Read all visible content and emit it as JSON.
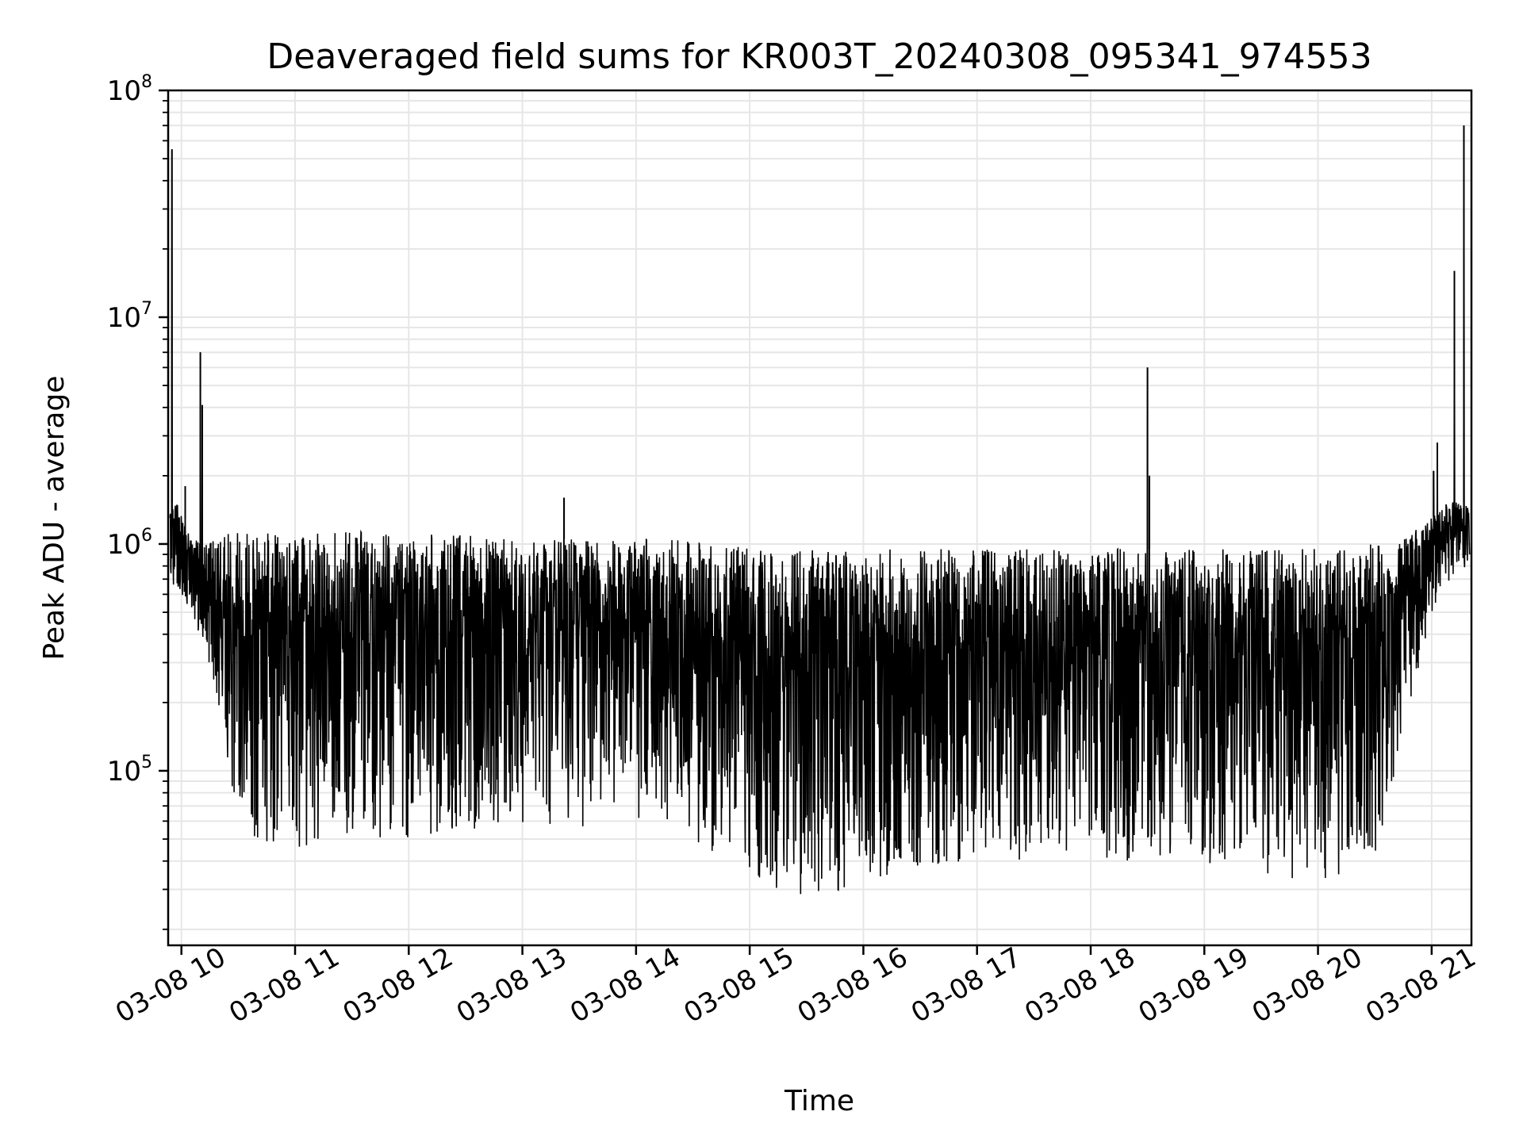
{
  "chart_data": {
    "type": "line",
    "title": "Deaveraged field sums for KR003T_20240308_095341_974553",
    "xlabel": "Time",
    "ylabel": "Peak ADU - average",
    "yscale": "log",
    "xlim": [
      "2024-03-08 09:53",
      "2024-03-08 21:21"
    ],
    "ylim": [
      17000,
      100000000
    ],
    "grid": true,
    "x_ticks": [
      "03-08 10",
      "03-08 11",
      "03-08 12",
      "03-08 13",
      "03-08 14",
      "03-08 15",
      "03-08 16",
      "03-08 17",
      "03-08 18",
      "03-08 19",
      "03-08 20",
      "03-08 21"
    ],
    "y_ticks": [
      {
        "base": "10",
        "exp": "5",
        "value": 100000
      },
      {
        "base": "10",
        "exp": "6",
        "value": 1000000
      },
      {
        "base": "10",
        "exp": "7",
        "value": 10000000
      },
      {
        "base": "10",
        "exp": "8",
        "value": 100000000
      }
    ],
    "series": [
      {
        "color": "#000000",
        "envelope": {
          "x": [
            "2024-03-08 09:54",
            "2024-03-08 09:58",
            "2024-03-08 10:05",
            "2024-03-08 10:12",
            "2024-03-08 10:20",
            "2024-03-08 10:30",
            "2024-03-08 10:40",
            "2024-03-08 11:00",
            "2024-03-08 11:30",
            "2024-03-08 12:00",
            "2024-03-08 12:30",
            "2024-03-08 13:00",
            "2024-03-08 13:30",
            "2024-03-08 14:00",
            "2024-03-08 14:30",
            "2024-03-08 15:00",
            "2024-03-08 15:30",
            "2024-03-08 16:00",
            "2024-03-08 16:30",
            "2024-03-08 17:00",
            "2024-03-08 17:30",
            "2024-03-08 18:00",
            "2024-03-08 18:30",
            "2024-03-08 19:00",
            "2024-03-08 19:30",
            "2024-03-08 20:00",
            "2024-03-08 20:30",
            "2024-03-08 20:45",
            "2024-03-08 21:00",
            "2024-03-08 21:10",
            "2024-03-08 21:20"
          ],
          "upper": [
            1500000,
            1600000,
            1100000,
            1000000,
            1100000,
            1150000,
            1150000,
            1150000,
            1150000,
            1100000,
            1100000,
            1050000,
            1050000,
            1050000,
            1050000,
            1000000,
            950000,
            950000,
            950000,
            950000,
            950000,
            950000,
            950000,
            950000,
            950000,
            950000,
            1000000,
            1050000,
            1300000,
            1600000,
            1500000
          ],
          "lower": [
            700000,
            600000,
            500000,
            350000,
            170000,
            60000,
            45000,
            45000,
            50000,
            50000,
            55000,
            55000,
            55000,
            55000,
            50000,
            35000,
            25000,
            32000,
            38000,
            40000,
            40000,
            40000,
            40000,
            38000,
            35000,
            32000,
            38000,
            150000,
            500000,
            700000,
            800000
          ]
        },
        "spikes": [
          {
            "x": "2024-03-08 09:55",
            "y": 55000000
          },
          {
            "x": "2024-03-08 10:02",
            "y": 1800000
          },
          {
            "x": "2024-03-08 10:10",
            "y": 7000000
          },
          {
            "x": "2024-03-08 10:11",
            "y": 4100000
          },
          {
            "x": "2024-03-08 13:22",
            "y": 1600000
          },
          {
            "x": "2024-03-08 18:30",
            "y": 6000000
          },
          {
            "x": "2024-03-08 18:31",
            "y": 2000000
          },
          {
            "x": "2024-03-08 21:01",
            "y": 2100000
          },
          {
            "x": "2024-03-08 21:03",
            "y": 2800000
          },
          {
            "x": "2024-03-08 21:12",
            "y": 16000000
          },
          {
            "x": "2024-03-08 21:17",
            "y": 70000000
          }
        ]
      }
    ]
  }
}
